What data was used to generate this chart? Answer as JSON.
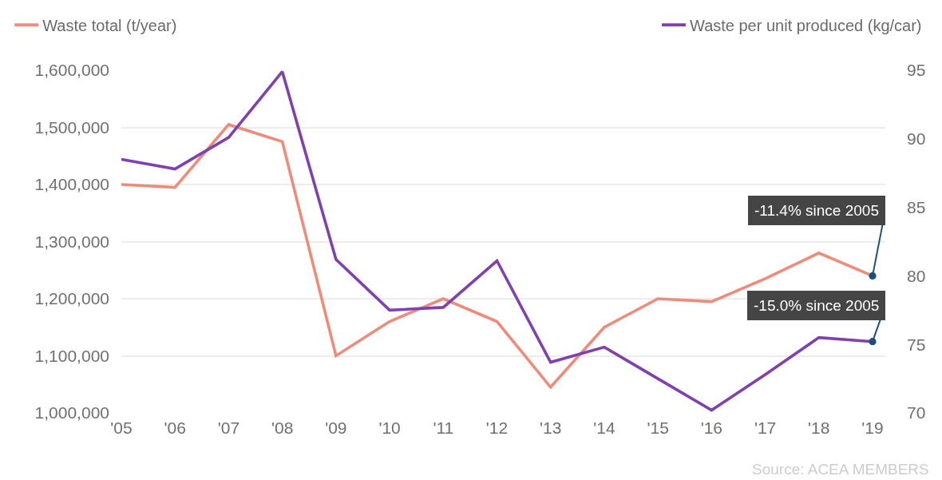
{
  "chart_data": {
    "type": "line",
    "categories": [
      "'05",
      "'06",
      "'07",
      "'08",
      "'09",
      "'10",
      "'11",
      "'12",
      "'13",
      "'14",
      "'15",
      "'16",
      "'17",
      "'18",
      "'19"
    ],
    "series": [
      {
        "name": "Waste total (t/year)",
        "color": "#ee8c7c",
        "values": [
          1400000,
          1395000,
          1505000,
          1475000,
          1100000,
          1160000,
          1200000,
          1160000,
          1045000,
          1150000,
          1200000,
          1195000,
          1235000,
          1280000,
          1240000
        ]
      },
      {
        "name": "Waste per unit produced (kg/car)",
        "color": "#8040ad",
        "axis": "y2",
        "values": [
          88.5,
          87.8,
          90.1,
          94.9,
          81.2,
          77.5,
          77.7,
          81.1,
          73.7,
          74.8,
          72.5,
          70.2,
          72.8,
          75.5,
          75.2
        ]
      }
    ],
    "ylim": [
      1000000,
      1600000
    ],
    "yticks": [
      {
        "value": 1000000,
        "label": "1,000,000"
      },
      {
        "value": 1100000,
        "label": "1,100,000"
      },
      {
        "value": 1200000,
        "label": "1,200,000"
      },
      {
        "value": 1300000,
        "label": "1,300,000"
      },
      {
        "value": 1400000,
        "label": "1,400,000"
      },
      {
        "value": 1500000,
        "label": "1,500,000"
      },
      {
        "value": 1600000,
        "label": "1,600,000"
      }
    ],
    "y2lim": [
      70,
      95
    ],
    "y2ticks": [
      70,
      75,
      80,
      85,
      90,
      95
    ],
    "annotations": [
      {
        "text": "-11.4% since 2005",
        "x": "'19",
        "y": 1240000
      },
      {
        "text": "-15.0% since 2005",
        "x": "'19",
        "y": 1125000
      },
      "Source: ACEA MEMBERS"
    ],
    "grid": "y",
    "legend": "top",
    "line_style": "solid"
  }
}
